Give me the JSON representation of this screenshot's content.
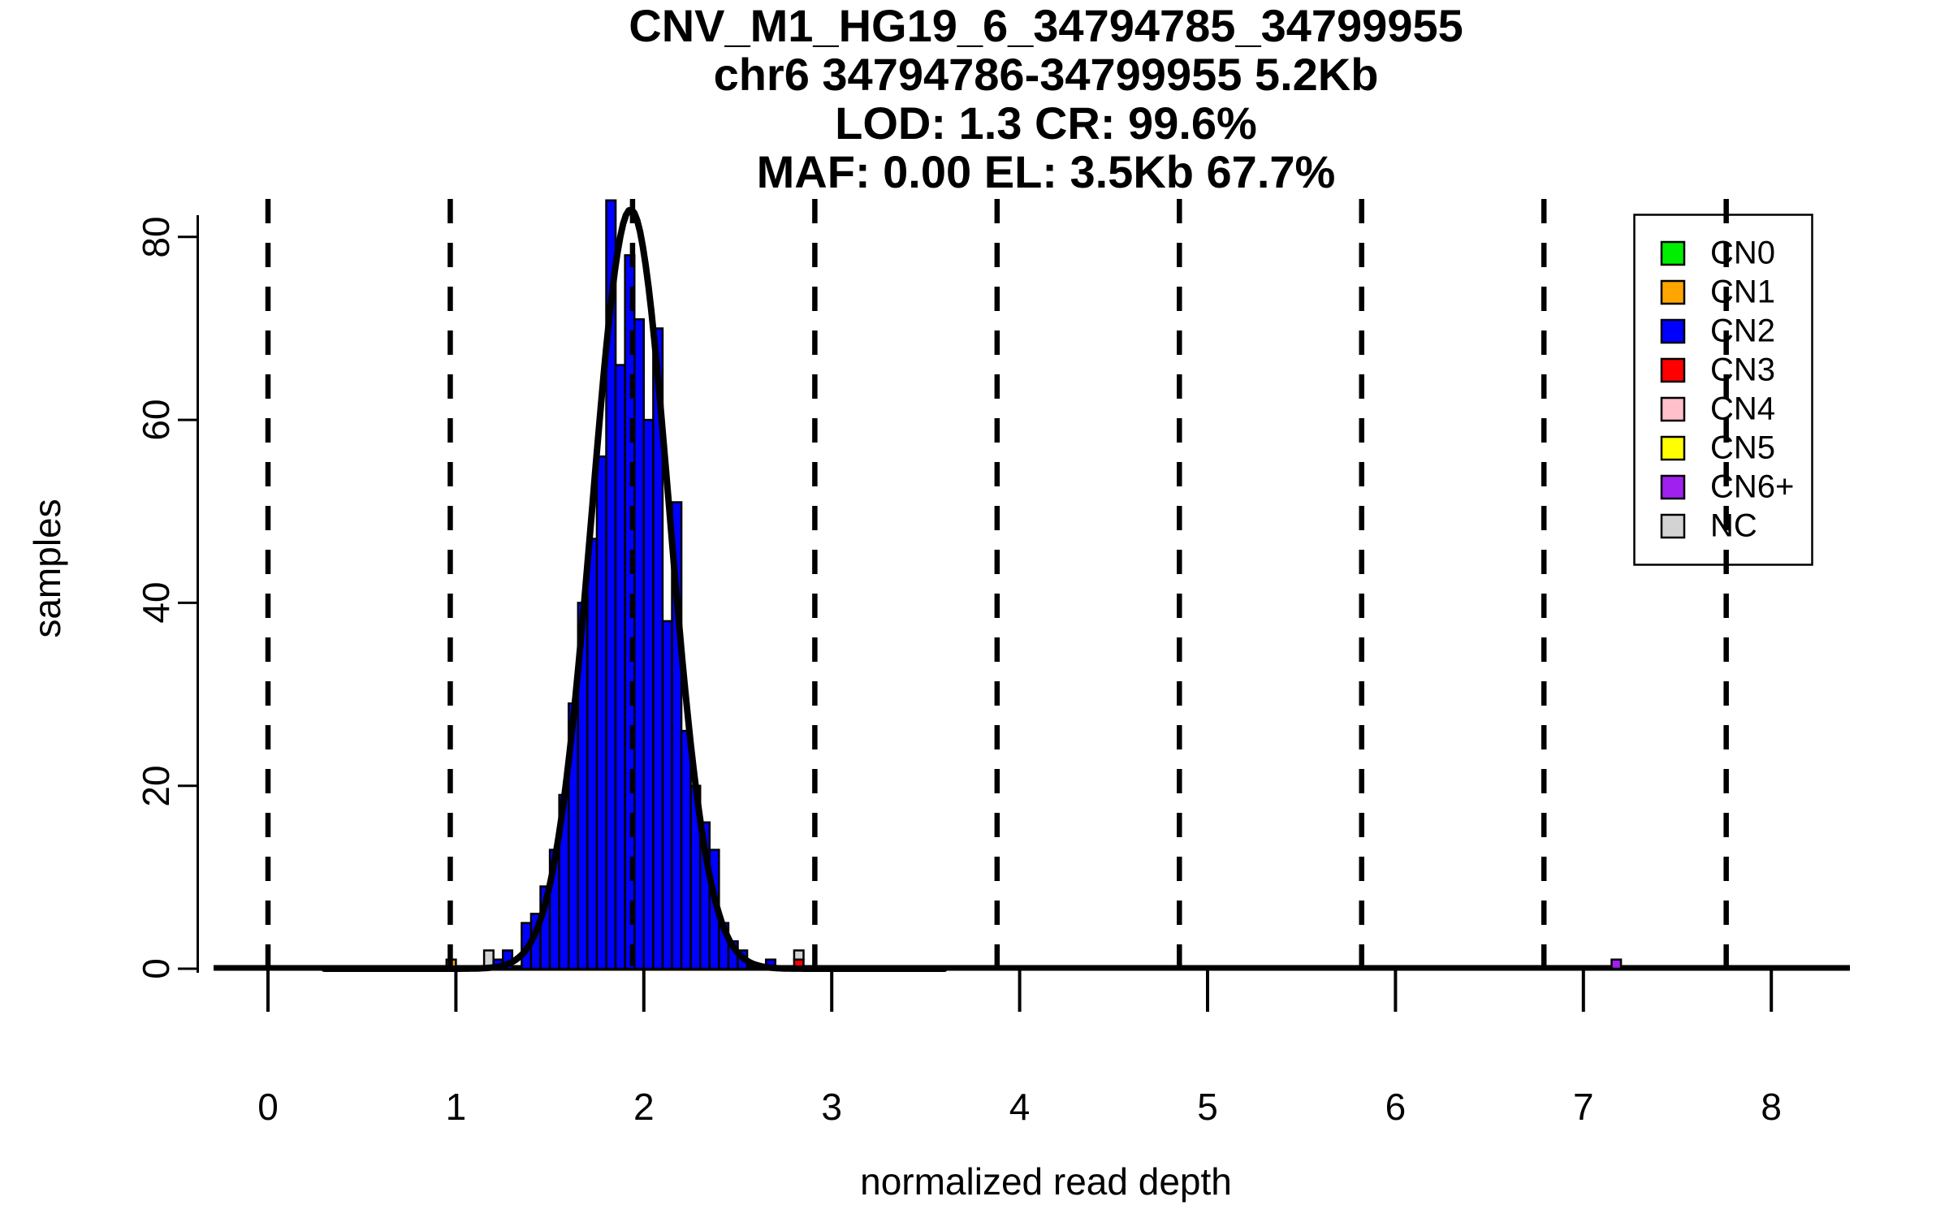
{
  "title": {
    "line1": "CNV_M1_HG19_6_34794785_34799955",
    "line2": "chr6 34794786-34799955 5.2Kb",
    "line3": "LOD: 1.3 CR: 99.6%",
    "line4": "MAF: 0.00 EL: 3.5Kb 67.7%"
  },
  "axes": {
    "x": {
      "label": "normalized read depth",
      "ticks": [
        "0",
        "1",
        "2",
        "3",
        "4",
        "5",
        "6",
        "7",
        "8"
      ]
    },
    "y": {
      "label": "samples",
      "ticks": [
        "0",
        "20",
        "40",
        "60",
        "80"
      ]
    }
  },
  "legend": {
    "entries": [
      {
        "label": "CN0",
        "color": "#00EE00"
      },
      {
        "label": "CN1",
        "color": "#FFA500"
      },
      {
        "label": "CN2",
        "color": "#0000FF"
      },
      {
        "label": "CN3",
        "color": "#FF0000"
      },
      {
        "label": "CN4",
        "color": "#FFC0CB"
      },
      {
        "label": "CN5",
        "color": "#FFFF00"
      },
      {
        "label": "CN6+",
        "color": "#A020F0"
      },
      {
        "label": "NC",
        "color": "#D3D3D3"
      }
    ]
  },
  "chart_data": {
    "type": "bar",
    "subtype": "histogram-with-gaussian-fit",
    "title": "CNV_M1_HG19_6_34794785_34799955",
    "xlabel": "normalized read depth",
    "ylabel": "samples",
    "xlim": [
      -0.29,
      8.42
    ],
    "ylim": [
      0,
      84
    ],
    "grid": false,
    "bin_width": 0.05,
    "bars": [
      {
        "x": 0.95,
        "height": 1,
        "base": 0,
        "cn": "CN1"
      },
      {
        "x": 1.15,
        "height": 2,
        "base": 0,
        "cn": "NC"
      },
      {
        "x": 1.2,
        "height": 1,
        "base": 0,
        "cn": "CN2"
      },
      {
        "x": 1.25,
        "height": 2,
        "base": 0,
        "cn": "CN2"
      },
      {
        "x": 1.35,
        "height": 5,
        "base": 0,
        "cn": "CN2"
      },
      {
        "x": 1.4,
        "height": 6,
        "base": 0,
        "cn": "CN2"
      },
      {
        "x": 1.45,
        "height": 9,
        "base": 0,
        "cn": "CN2"
      },
      {
        "x": 1.5,
        "height": 13,
        "base": 0,
        "cn": "CN2"
      },
      {
        "x": 1.55,
        "height": 19,
        "base": 0,
        "cn": "CN2"
      },
      {
        "x": 1.6,
        "height": 29,
        "base": 0,
        "cn": "CN2"
      },
      {
        "x": 1.65,
        "height": 40,
        "base": 0,
        "cn": "CN2"
      },
      {
        "x": 1.7,
        "height": 47,
        "base": 0,
        "cn": "CN2"
      },
      {
        "x": 1.75,
        "height": 56,
        "base": 0,
        "cn": "CN2"
      },
      {
        "x": 1.8,
        "height": 84,
        "base": 0,
        "cn": "CN2"
      },
      {
        "x": 1.85,
        "height": 66,
        "base": 0,
        "cn": "CN2"
      },
      {
        "x": 1.9,
        "height": 78,
        "base": 0,
        "cn": "CN2"
      },
      {
        "x": 1.95,
        "height": 71,
        "base": 0,
        "cn": "CN2"
      },
      {
        "x": 2.0,
        "height": 60,
        "base": 0,
        "cn": "CN2"
      },
      {
        "x": 2.05,
        "height": 70,
        "base": 0,
        "cn": "CN2"
      },
      {
        "x": 2.1,
        "height": 38,
        "base": 0,
        "cn": "CN2"
      },
      {
        "x": 2.15,
        "height": 51,
        "base": 0,
        "cn": "CN2"
      },
      {
        "x": 2.2,
        "height": 26,
        "base": 0,
        "cn": "CN2"
      },
      {
        "x": 2.25,
        "height": 20,
        "base": 0,
        "cn": "CN2"
      },
      {
        "x": 2.3,
        "height": 16,
        "base": 0,
        "cn": "CN2"
      },
      {
        "x": 2.35,
        "height": 13,
        "base": 0,
        "cn": "CN2"
      },
      {
        "x": 2.4,
        "height": 5,
        "base": 0,
        "cn": "CN2"
      },
      {
        "x": 2.45,
        "height": 3,
        "base": 0,
        "cn": "CN2"
      },
      {
        "x": 2.5,
        "height": 2,
        "base": 0,
        "cn": "CN2"
      },
      {
        "x": 2.65,
        "height": 1,
        "base": 0,
        "cn": "CN2"
      },
      {
        "x": 2.8,
        "height": 1,
        "base": 0,
        "cn": "CN3"
      },
      {
        "x": 2.8,
        "height": 1,
        "base": 1,
        "cn": "NC"
      },
      {
        "x": 7.15,
        "height": 1,
        "base": 0,
        "cn": "CN6+"
      }
    ],
    "fit_curve": {
      "shape": "gaussian",
      "amplitude": 83,
      "mean": 1.93,
      "sd": 0.205,
      "x_range": [
        0.3,
        3.6
      ]
    },
    "dashed_guides": {
      "positions": [
        0.0,
        0.97,
        1.94,
        2.91,
        3.88,
        4.85,
        5.82,
        6.79,
        7.76
      ],
      "meaning": "expected depth per copy number CN0-CN8"
    }
  }
}
